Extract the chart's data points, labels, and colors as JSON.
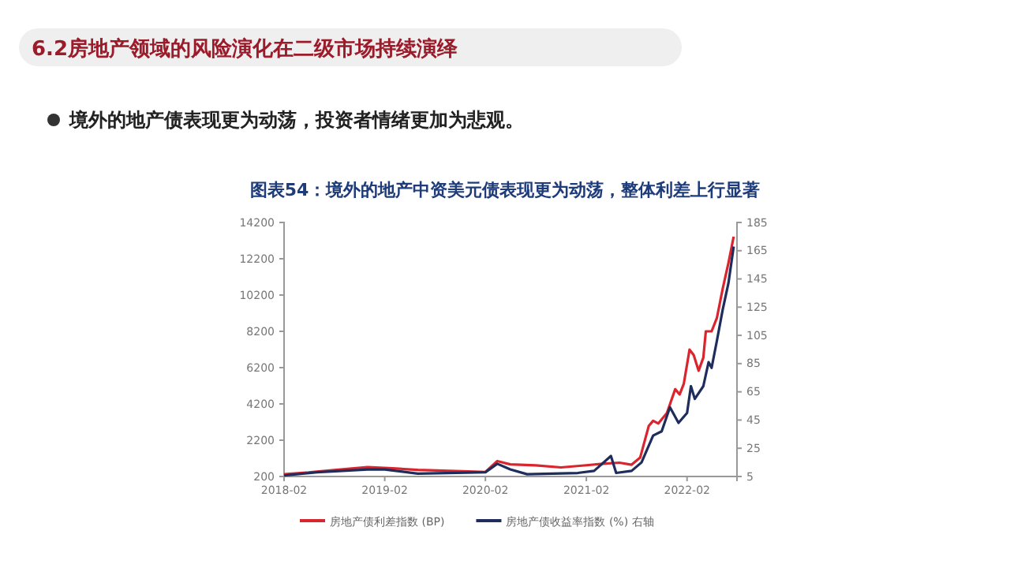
{
  "chart_data": {
    "type": "line",
    "title": "图表54：境外的地产中资美元债表现更为动荡，整体利差上行显著",
    "annotations": [
      "6.2房地产领域的风险演化在二级市场持续演绎",
      "境外的地产债表现更为动荡，投资者情绪更加为悲观。"
    ],
    "xlim": [
      "2018-02",
      "2022-08"
    ],
    "xticks": [
      "2018-02",
      "2019-02",
      "2020-02",
      "2021-02",
      "2022-02"
    ],
    "ylim": [
      200,
      14200
    ],
    "yticks": [
      200,
      2200,
      4200,
      6200,
      8200,
      10200,
      12200,
      14200
    ],
    "y2lim": [
      5,
      185
    ],
    "y2ticks": [
      5,
      25,
      45,
      65,
      85,
      105,
      125,
      145,
      165,
      185
    ],
    "legend": "bottom",
    "grid": false,
    "series": [
      {
        "name": "房地产债利差指数 (BP)",
        "color": "#d9262e",
        "x": [
          "2018-02-01",
          "2018-05-01",
          "2018-08-01",
          "2018-12-01",
          "2019-03-01",
          "2019-06-01",
          "2019-09-01",
          "2019-12-01",
          "2020-02-01",
          "2020-03-15",
          "2020-05-01",
          "2020-08-01",
          "2020-11-01",
          "2021-02-01",
          "2021-04-01",
          "2021-06-01",
          "2021-07-15",
          "2021-08-15",
          "2021-09-15",
          "2021-10-01",
          "2021-10-20",
          "2021-11-20",
          "2021-12-20",
          "2022-01-05",
          "2022-01-20",
          "2022-02-10",
          "2022-02-25",
          "2022-03-15",
          "2022-04-01",
          "2022-04-10",
          "2022-05-01",
          "2022-05-20",
          "2022-06-10",
          "2022-07-01",
          "2022-07-20"
        ],
        "values": [
          330,
          420,
          560,
          720,
          650,
          560,
          520,
          480,
          450,
          1050,
          870,
          810,
          700,
          820,
          900,
          960,
          850,
          1240,
          2980,
          3270,
          3120,
          3700,
          5010,
          4720,
          5300,
          7190,
          6900,
          6030,
          6750,
          8200,
          8200,
          8930,
          10530,
          11970,
          13420
        ]
      },
      {
        "name": "房地产债收益率指数 (%) 右轴",
        "color": "#1f2d5c",
        "axis": "y2",
        "x": [
          "2018-02-01",
          "2018-06-01",
          "2018-12-01",
          "2019-02-01",
          "2019-06-01",
          "2020-02-01",
          "2020-03-15",
          "2020-05-01",
          "2020-07-01",
          "2021-01-01",
          "2021-03-01",
          "2021-05-01",
          "2021-05-20",
          "2021-07-15",
          "2021-08-20",
          "2021-10-01",
          "2021-11-01",
          "2021-12-01",
          "2022-01-01",
          "2022-02-01",
          "2022-02-15",
          "2022-03-01",
          "2022-04-01",
          "2022-04-20",
          "2022-05-01",
          "2022-05-20",
          "2022-06-10",
          "2022-07-01",
          "2022-07-20"
        ],
        "values": [
          5.7,
          8,
          10,
          10,
          7,
          8,
          14,
          10,
          6.6,
          7.5,
          9,
          19.5,
          7.5,
          9,
          15,
          34,
          37,
          54,
          43,
          50,
          69,
          60,
          69,
          86,
          82,
          101,
          123,
          142,
          168
        ]
      }
    ]
  }
}
